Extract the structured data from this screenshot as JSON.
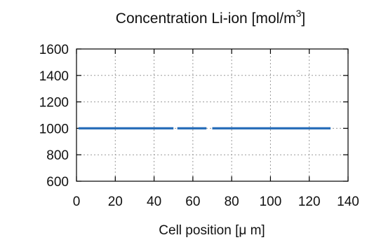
{
  "chart_data": {
    "type": "line",
    "title": "Concentration Li-ion [mol/m",
    "title_superscript": "3",
    "title_suffix": "]",
    "xlabel_main": "Cell position [",
    "xlabel_mu": "μ",
    "xlabel_suffix": " m]",
    "ylabel": "",
    "xlim": [
      0,
      140
    ],
    "ylim": [
      600,
      1600
    ],
    "xticks": [
      0,
      20,
      40,
      60,
      80,
      100,
      120,
      140
    ],
    "yticks": [
      600,
      800,
      1000,
      1200,
      1400,
      1600
    ],
    "grid": true,
    "line_color": "#2a6fba",
    "series": [
      {
        "x": [
          1,
          50
        ],
        "y": [
          1000,
          1000
        ]
      },
      {
        "x": [
          52,
          67
        ],
        "y": [
          1000,
          1000
        ]
      },
      {
        "x": [
          70,
          131
        ],
        "y": [
          1000,
          1000
        ]
      }
    ]
  }
}
